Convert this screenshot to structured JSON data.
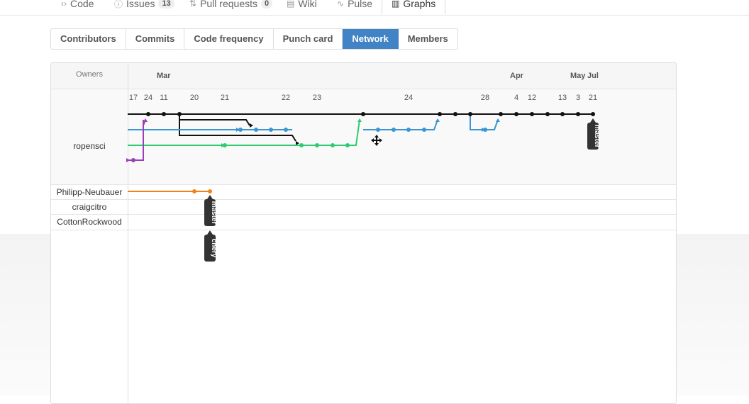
{
  "repo_nav": {
    "items": [
      {
        "label": "Code",
        "icon": "code-icon",
        "glyph": "‹›"
      },
      {
        "label": "Issues",
        "icon": "issue-icon",
        "glyph": "ⓘ",
        "count": "13"
      },
      {
        "label": "Pull requests",
        "icon": "pull-request-icon",
        "glyph": "⇅",
        "count": "0"
      },
      {
        "label": "Wiki",
        "icon": "book-icon",
        "glyph": "▤"
      },
      {
        "label": "Pulse",
        "icon": "pulse-icon",
        "glyph": "∿"
      }
    ],
    "selected": {
      "label": "Graphs",
      "icon": "graph-icon",
      "glyph": "▥"
    }
  },
  "graph_tabs": [
    "Contributors",
    "Commits",
    "Code frequency",
    "Punch card",
    "Network",
    "Members"
  ],
  "active_tab": "Network",
  "network": {
    "owners_header": "Owners",
    "owners": [
      "ropensci",
      "Philipp-Neubauer",
      "craigcitro",
      "CottonRockwood"
    ],
    "months": [
      "Mar",
      "Apr",
      "May",
      "Jul"
    ],
    "days": [
      "17",
      "24",
      "11",
      "20",
      "21",
      "22",
      "23",
      "24",
      "28",
      "4",
      "12",
      "13",
      "3",
      "21"
    ],
    "branch_labels": {
      "ropensci_master": "master",
      "philipp_master": "master",
      "philipp_chery": "chery"
    },
    "colors": {
      "black": "#111111",
      "blue": "#3b95d3",
      "green": "#2ecc71",
      "purple": "#9b3fb5",
      "orange": "#f0841a",
      "label_bg": "#333333"
    }
  }
}
